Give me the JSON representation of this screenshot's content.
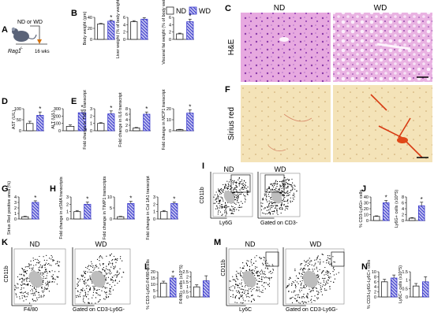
{
  "legend": {
    "nd": "ND",
    "wd": "WD"
  },
  "colors": {
    "nd_fill": "#ffffff",
    "wd_fill": "#3a3acc",
    "wd_hatch": "#c8c8f0",
    "bar_stroke": "#222222",
    "star": "#111111"
  },
  "panelA": {
    "letter": "A",
    "mouse": "Rag1",
    "superscript": "-/-",
    "diet": "ND or WD",
    "duration": "16 wks"
  },
  "panelB": {
    "letter": "B"
  },
  "panelC": {
    "letter": "C",
    "row_label": "H&E",
    "col_nd": "ND",
    "col_wd": "WD"
  },
  "panelD": {
    "letter": "D"
  },
  "panelE": {
    "letter": "E"
  },
  "panelF": {
    "letter": "F",
    "row_label": "Sirius red"
  },
  "panelG": {
    "letter": "G"
  },
  "panelH": {
    "letter": "H"
  },
  "panelI": {
    "letter": "I",
    "plot_nd": "ND",
    "plot_wd": "WD",
    "yaxis": "CD11b",
    "xaxis": "Ly6G",
    "gate": "Gated on CD3-"
  },
  "panelJ": {
    "letter": "J"
  },
  "panelK": {
    "letter": "K",
    "plot_nd": "ND",
    "plot_wd": "WD",
    "yaxis": "CD11b",
    "xaxis": "F4/80",
    "gate": "Gated on CD3-Ly6G-"
  },
  "panelL": {
    "letter": "L"
  },
  "panelM": {
    "letter": "M",
    "plot_nd": "ND",
    "plot_wd": "WD",
    "yaxis": "CD11b",
    "xaxis": "Ly6C",
    "gate": "Gated on CD3-Ly6G-"
  },
  "panelN": {
    "letter": "N"
  },
  "chart_data": [
    {
      "id": "B1",
      "type": "bar",
      "ylabel": "Body weight (gm)",
      "ylim": [
        0,
        40
      ],
      "ticks": [
        0,
        20,
        40
      ],
      "categories": [
        "ND",
        "WD"
      ],
      "values": [
        28,
        33
      ],
      "errors": [
        1,
        1.5
      ],
      "sig": [
        false,
        true
      ]
    },
    {
      "id": "B2",
      "type": "bar",
      "ylabel": "Liver weight (% of body weight)",
      "ylim": [
        0,
        6
      ],
      "ticks": [
        0,
        2,
        4,
        6
      ],
      "categories": [
        "ND",
        "WD"
      ],
      "values": [
        4.8,
        5.5
      ],
      "errors": [
        0.3,
        0.4
      ],
      "sig": [
        false,
        false
      ]
    },
    {
      "id": "B3",
      "type": "bar",
      "ylabel": "Visceral fat weight (% of body weight)",
      "ylim": [
        0,
        6
      ],
      "ticks": [
        0,
        2,
        4,
        6
      ],
      "categories": [
        "ND",
        "WD"
      ],
      "values": [
        1.5,
        4.8
      ],
      "errors": [
        0.2,
        0.7
      ],
      "sig": [
        false,
        true
      ]
    },
    {
      "id": "D1",
      "type": "bar",
      "ylabel": "AST (U/L)",
      "ylim": [
        0,
        100
      ],
      "ticks": [
        0,
        50,
        100
      ],
      "categories": [
        "ND",
        "WD"
      ],
      "values": [
        33,
        70
      ],
      "errors": [
        10,
        15
      ],
      "sig": [
        false,
        true
      ]
    },
    {
      "id": "D2",
      "type": "bar",
      "ylabel": "ALT (U/L)",
      "ylim": [
        0,
        300
      ],
      "ticks": [
        0,
        100,
        200,
        300
      ],
      "categories": [
        "ND",
        "WD"
      ],
      "values": [
        60,
        245
      ],
      "errors": [
        20,
        35
      ],
      "sig": [
        false,
        true
      ]
    },
    {
      "id": "E1",
      "type": "bar",
      "ylabel": "Fold change in TNFα transcript",
      "ylim": [
        0,
        3
      ],
      "ticks": [
        0,
        1,
        2,
        3
      ],
      "categories": [
        "ND",
        "WD"
      ],
      "values": [
        1,
        2.3
      ],
      "errors": [
        0.1,
        0.4
      ],
      "sig": [
        false,
        true
      ]
    },
    {
      "id": "E2",
      "type": "bar",
      "ylabel": "Fold change in IL6 transcript",
      "ylim": [
        0,
        8
      ],
      "ticks": [
        0,
        2,
        4,
        6,
        8
      ],
      "categories": [
        "ND",
        "WD"
      ],
      "values": [
        1,
        6
      ],
      "errors": [
        0.2,
        0.8
      ],
      "sig": [
        false,
        true
      ]
    },
    {
      "id": "E3",
      "type": "bar",
      "ylabel": "Fold change in MCP1 transcript",
      "ylim": [
        0,
        20
      ],
      "ticks": [
        0,
        10,
        20
      ],
      "categories": [
        "ND",
        "WD"
      ],
      "values": [
        1,
        16
      ],
      "errors": [
        0.3,
        3
      ],
      "sig": [
        false,
        true
      ]
    },
    {
      "id": "G1",
      "type": "bar",
      "ylabel": "Sirius Red positive area (%)",
      "ylim": [
        0,
        4
      ],
      "ticks": [
        0,
        1,
        2,
        3,
        4
      ],
      "categories": [
        "ND",
        "WD"
      ],
      "values": [
        0.4,
        3
      ],
      "errors": [
        0.1,
        0.3
      ],
      "sig": [
        false,
        true
      ]
    },
    {
      "id": "H1",
      "type": "bar",
      "ylabel": "Fold change in αSMA transcripts",
      "ylim": [
        0,
        3
      ],
      "ticks": [
        0,
        1,
        2,
        3
      ],
      "categories": [
        "ND",
        "WD"
      ],
      "values": [
        1,
        2
      ],
      "errors": [
        0.15,
        0.3
      ],
      "sig": [
        false,
        true
      ]
    },
    {
      "id": "H2",
      "type": "bar",
      "ylabel": "Fold change in TIMP1 transcripts",
      "ylim": [
        0,
        10
      ],
      "ticks": [
        0,
        5,
        10
      ],
      "categories": [
        "ND",
        "WD"
      ],
      "values": [
        1,
        7
      ],
      "errors": [
        0.2,
        1
      ],
      "sig": [
        false,
        true
      ]
    },
    {
      "id": "H3",
      "type": "bar",
      "ylabel": "Fold change in Col 1A1 transcript",
      "ylim": [
        0,
        3
      ],
      "ticks": [
        0,
        1,
        2,
        3
      ],
      "categories": [
        "ND",
        "WD"
      ],
      "values": [
        1,
        2.1
      ],
      "errors": [
        0.15,
        0.2
      ],
      "sig": [
        false,
        true
      ]
    },
    {
      "id": "J1",
      "type": "bar",
      "ylabel": "% CD3-Ly6G+ cells",
      "ylim": [
        0,
        40
      ],
      "ticks": [
        0,
        10,
        20,
        30,
        40
      ],
      "categories": [
        "ND",
        "WD"
      ],
      "values": [
        7,
        30
      ],
      "errors": [
        1,
        4
      ],
      "sig": [
        false,
        true
      ]
    },
    {
      "id": "J2",
      "type": "bar",
      "ylabel": "Ly6G+ cells (x10^5)",
      "ylim": [
        0,
        8
      ],
      "ticks": [
        0,
        2,
        4,
        6,
        8
      ],
      "categories": [
        "ND",
        "WD"
      ],
      "values": [
        0.8,
        5
      ],
      "errors": [
        0.2,
        1.2
      ],
      "sig": [
        false,
        true
      ]
    },
    {
      "id": "L1",
      "type": "bar",
      "ylabel": "% CD3-Ly6G-F4/80+ cells",
      "ylim": [
        0,
        20
      ],
      "ticks": [
        0,
        5,
        10,
        15,
        20
      ],
      "categories": [
        "ND",
        "WD"
      ],
      "values": [
        11,
        15
      ],
      "errors": [
        1.5,
        1.5
      ],
      "sig": [
        false,
        true
      ]
    },
    {
      "id": "L2",
      "type": "bar",
      "ylabel": "F4/80+ cells (x10^5)",
      "ylim": [
        0,
        2.5
      ],
      "ticks": [
        0,
        0.5,
        1,
        1.5,
        2,
        2.5
      ],
      "categories": [
        "ND",
        "WD"
      ],
      "values": [
        1,
        1.6
      ],
      "errors": [
        0.2,
        0.5
      ],
      "sig": [
        false,
        false
      ]
    },
    {
      "id": "N1",
      "type": "bar",
      "ylabel": "% CD3-Ly6G-Ly6C+ cells",
      "ylim": [
        0,
        10
      ],
      "ticks": [
        0,
        2,
        4,
        6,
        8,
        10
      ],
      "categories": [
        "ND",
        "WD"
      ],
      "values": [
        6,
        7.5
      ],
      "errors": [
        1,
        1.2
      ],
      "sig": [
        false,
        false
      ]
    },
    {
      "id": "N2",
      "type": "bar",
      "ylabel": "Ly6C+ cells (x10^5)",
      "ylim": [
        0,
        1.5
      ],
      "ticks": [
        0,
        0.5,
        1,
        1.5
      ],
      "categories": [
        "ND",
        "WD"
      ],
      "values": [
        0.65,
        0.9
      ],
      "errors": [
        0.15,
        0.3
      ],
      "sig": [
        false,
        false
      ]
    }
  ]
}
